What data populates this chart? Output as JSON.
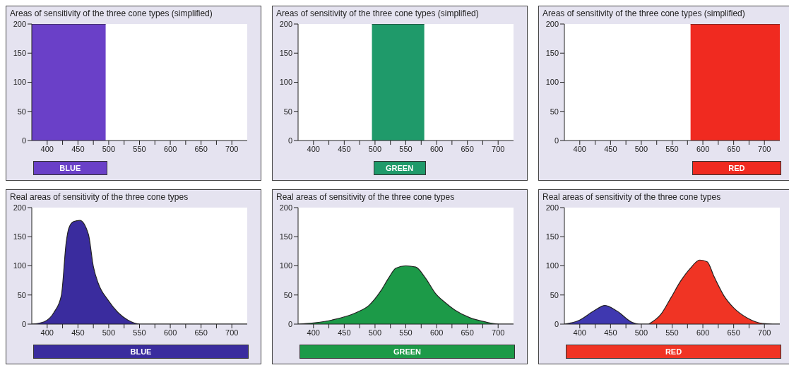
{
  "chart_data": [
    {
      "type": "area",
      "title": "Areas of sensitivity of the three cone types (simplified)",
      "xlabel": "BLUE",
      "xlim": [
        375,
        725
      ],
      "xticks": [
        400,
        {
          "value": 425,
          "label": null
        },
        450,
        {
          "value": 475,
          "label": null
        },
        500,
        {
          "value": 525,
          "label": null
        },
        550,
        {
          "value": 575,
          "label": null
        },
        600,
        {
          "value": 625,
          "label": null
        },
        650,
        {
          "value": 675,
          "label": null
        },
        700
      ],
      "ylim": [
        0,
        200
      ],
      "yticks": [
        0,
        50,
        100,
        150,
        200
      ],
      "series": [
        {
          "color": "#6a40c8",
          "x": [
            375,
            495
          ],
          "values": [
            200,
            200
          ]
        }
      ]
    },
    {
      "type": "area",
      "title": "Areas of sensitivity of the three cone types (simplified)",
      "xlabel": "GREEN",
      "xlim": [
        375,
        725
      ],
      "xticks": [
        400,
        {
          "value": 425,
          "label": null
        },
        450,
        {
          "value": 475,
          "label": null
        },
        500,
        {
          "value": 525,
          "label": null
        },
        550,
        {
          "value": 575,
          "label": null
        },
        600,
        {
          "value": 625,
          "label": null
        },
        650,
        {
          "value": 675,
          "label": null
        },
        700
      ],
      "ylim": [
        0,
        200
      ],
      "yticks": [
        0,
        50,
        100,
        150,
        200
      ],
      "series": [
        {
          "color": "#1f9a6a",
          "x": [
            495,
            580
          ],
          "values": [
            200,
            200
          ]
        }
      ]
    },
    {
      "type": "area",
      "title": "Areas of sensitivity of the three cone types (simplified)",
      "xlabel": "RED",
      "xlim": [
        375,
        725
      ],
      "xticks": [
        400,
        {
          "value": 425,
          "label": null
        },
        450,
        {
          "value": 475,
          "label": null
        },
        500,
        {
          "value": 525,
          "label": null
        },
        550,
        {
          "value": 575,
          "label": null
        },
        600,
        {
          "value": 625,
          "label": null
        },
        650,
        {
          "value": 675,
          "label": null
        },
        700
      ],
      "ylim": [
        0,
        200
      ],
      "yticks": [
        0,
        50,
        100,
        150,
        200
      ],
      "series": [
        {
          "color": "#f02a20",
          "x": [
            580,
            725
          ],
          "values": [
            200,
            200
          ]
        }
      ]
    },
    {
      "type": "area",
      "title": "Real areas of sensitivity of the three cone types",
      "xlabel": "BLUE",
      "xlim": [
        375,
        725
      ],
      "xticks": [
        400,
        {
          "value": 425,
          "label": null
        },
        450,
        {
          "value": 475,
          "label": null
        },
        500,
        {
          "value": 525,
          "label": null
        },
        550,
        {
          "value": 575,
          "label": null
        },
        600,
        {
          "value": 625,
          "label": null
        },
        650,
        {
          "value": 675,
          "label": null
        },
        700
      ],
      "ylim": [
        0,
        200
      ],
      "yticks": [
        0,
        50,
        100,
        150,
        200
      ],
      "series": [
        {
          "color": "#3a2c9e",
          "x": [
            375,
            395,
            411,
            423,
            431,
            435,
            443,
            453,
            467,
            475,
            483,
            499,
            515,
            531,
            551,
            725
          ],
          "values": [
            0,
            4,
            20,
            49,
            141,
            164,
            176,
            178,
            154,
            99,
            70,
            41,
            20,
            7,
            0,
            0
          ]
        }
      ]
    },
    {
      "type": "area",
      "title": "Real areas of sensitivity of the three cone types",
      "xlabel": "GREEN",
      "xlim": [
        375,
        725
      ],
      "xticks": [
        400,
        {
          "value": 425,
          "label": null
        },
        450,
        {
          "value": 475,
          "label": null
        },
        500,
        {
          "value": 525,
          "label": null
        },
        550,
        {
          "value": 575,
          "label": null
        },
        600,
        {
          "value": 625,
          "label": null
        },
        650,
        {
          "value": 675,
          "label": null
        },
        700
      ],
      "ylim": [
        0,
        200
      ],
      "yticks": [
        0,
        50,
        100,
        150,
        200
      ],
      "series": [
        {
          "color": "#1c9a48",
          "x": [
            375,
            400,
            430,
            470,
            490,
            510,
            522,
            534,
            550,
            566,
            582,
            598,
            614,
            630,
            654,
            678,
            702,
            725
          ],
          "values": [
            0,
            2,
            7,
            20,
            32,
            58,
            79,
            96,
            100,
            98,
            79,
            53,
            37,
            24,
            11,
            4,
            0,
            0
          ]
        }
      ]
    },
    {
      "type": "area",
      "title": "Real areas of sensitivity of the three cone types",
      "xlabel": "RED",
      "xlim": [
        375,
        725
      ],
      "xticks": [
        400,
        {
          "value": 425,
          "label": null
        },
        450,
        {
          "value": 475,
          "label": null
        },
        500,
        {
          "value": 525,
          "label": null
        },
        550,
        {
          "value": 575,
          "label": null
        },
        600,
        {
          "value": 625,
          "label": null
        },
        650,
        {
          "value": 675,
          "label": null
        },
        700
      ],
      "ylim": [
        0,
        200
      ],
      "yticks": [
        0,
        50,
        100,
        150,
        200
      ],
      "series": [
        {
          "color": "#3f38b0",
          "x": [
            375,
            398,
            422,
            441,
            461,
            485,
            496,
            512
          ],
          "values": [
            0,
            6,
            22,
            32,
            22,
            3,
            0,
            0
          ]
        },
        {
          "color": "#f03424",
          "x": [
            512,
            532,
            548,
            564,
            579,
            595,
            607,
            618,
            634,
            650,
            673,
            697,
            713,
            725
          ],
          "values": [
            0,
            17,
            45,
            74,
            95,
            110,
            107,
            82,
            49,
            28,
            10,
            1,
            0,
            0
          ]
        }
      ]
    }
  ]
}
